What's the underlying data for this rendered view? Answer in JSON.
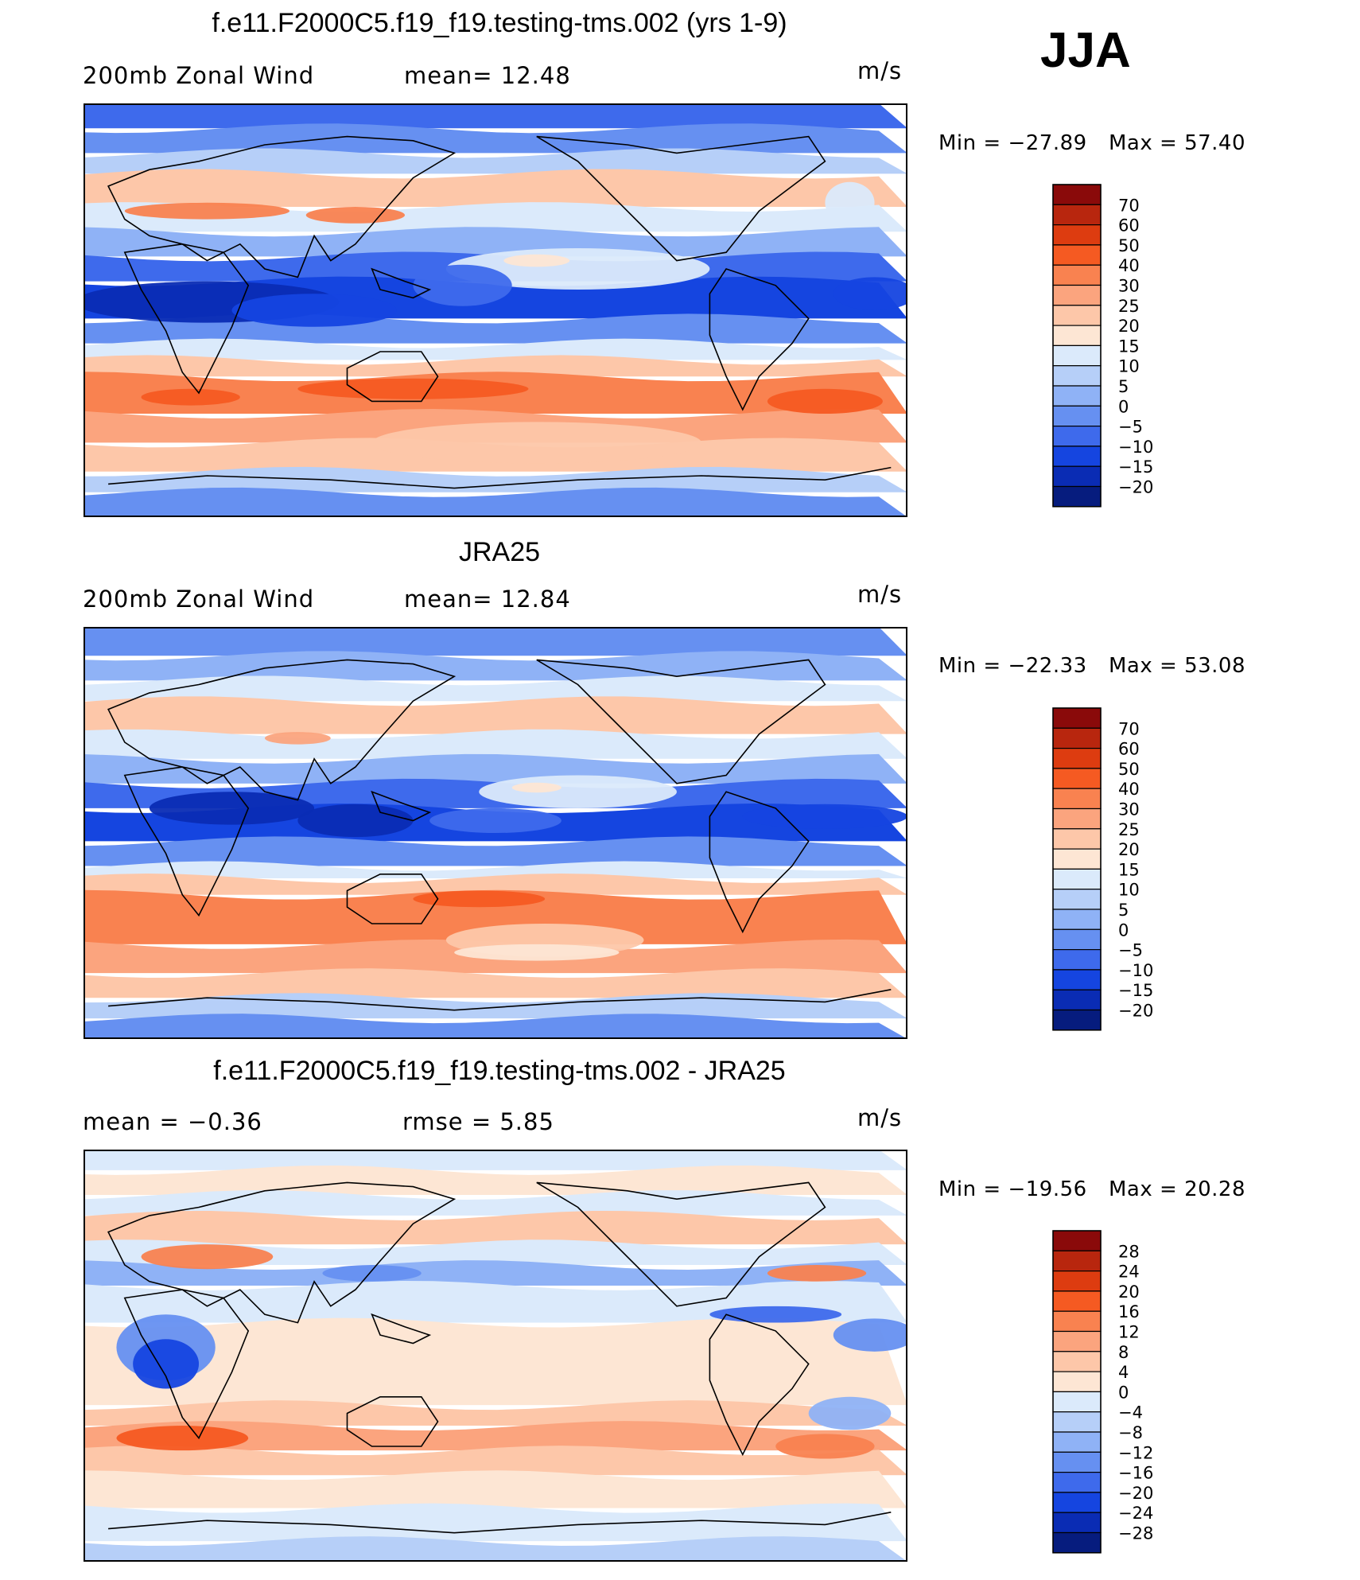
{
  "season": "JJA",
  "panels": [
    {
      "title": "f.e11.F2000C5.f19_f19.testing-tms.002 (yrs 1-9)",
      "left_label": "200mb  Zonal  Wind",
      "center_label": "mean=   12.48",
      "units": "m/s",
      "min_text": "Min  =  −27.89",
      "max_text": "Max  =    57.40"
    },
    {
      "title": "JRA25",
      "left_label": "200mb  Zonal  Wind",
      "center_label": "mean=   12.84",
      "units": "m/s",
      "min_text": "Min  =  −22.33",
      "max_text": "Max  =    53.08"
    },
    {
      "title": "f.e11.F2000C5.f19_f19.testing-tms.002 - JRA25",
      "left_label": "mean  =    −0.36",
      "center_label": "rmse  =     5.85",
      "units": "m/s",
      "min_text": "Min  =  −19.56",
      "max_text": "Max  =    20.28"
    }
  ],
  "chart_data": [
    {
      "type": "heatmap",
      "title": "f.e11.F2000C5.f19_f19.testing-tms.002 (yrs 1-9)",
      "variable": "200mb Zonal Wind",
      "units": "m/s",
      "mean": 12.48,
      "min": -27.89,
      "max": 57.4,
      "x_range": [
        30,
        390
      ],
      "y_range": [
        -90,
        90
      ],
      "colorbar_levels": [
        "70",
        "60",
        "50",
        "40",
        "30",
        "25",
        "20",
        "15",
        "10",
        "5",
        "0",
        "−5",
        "−10",
        "−15",
        "−20"
      ],
      "colors": [
        "#8a0a0a",
        "#b8260e",
        "#dd3c10",
        "#f55a22",
        "#f98250",
        "#fba47e",
        "#fdc7a9",
        "#fde6d4",
        "#dbeafb",
        "#b6cff8",
        "#8fb2f6",
        "#6690f1",
        "#3e6aec",
        "#1545e0",
        "#0a2cb4",
        "#061c7e"
      ]
    },
    {
      "type": "heatmap",
      "title": "JRA25",
      "variable": "200mb Zonal Wind",
      "units": "m/s",
      "mean": 12.84,
      "min": -22.33,
      "max": 53.08,
      "x_range": [
        30,
        390
      ],
      "y_range": [
        -90,
        90
      ],
      "colorbar_levels": [
        "70",
        "60",
        "50",
        "40",
        "30",
        "25",
        "20",
        "15",
        "10",
        "5",
        "0",
        "−5",
        "−10",
        "−15",
        "−20"
      ],
      "colors": [
        "#8a0a0a",
        "#b8260e",
        "#dd3c10",
        "#f55a22",
        "#f98250",
        "#fba47e",
        "#fdc7a9",
        "#fde6d4",
        "#dbeafb",
        "#b6cff8",
        "#8fb2f6",
        "#6690f1",
        "#3e6aec",
        "#1545e0",
        "#0a2cb4",
        "#061c7e"
      ]
    },
    {
      "type": "heatmap",
      "title": "f.e11.F2000C5.f19_f19.testing-tms.002 - JRA25",
      "units": "m/s",
      "mean": -0.36,
      "rmse": 5.85,
      "min": -19.56,
      "max": 20.28,
      "x_range": [
        30,
        390
      ],
      "y_range": [
        -90,
        90
      ],
      "colorbar_levels": [
        "28",
        "24",
        "20",
        "16",
        "12",
        "8",
        "4",
        "0",
        "−4",
        "−8",
        "−12",
        "−16",
        "−20",
        "−24",
        "−28"
      ],
      "colors": [
        "#8a0a0a",
        "#b8260e",
        "#dd3c10",
        "#f55a22",
        "#f98250",
        "#fba47e",
        "#fdc7a9",
        "#fde6d4",
        "#dbeafb",
        "#b6cff8",
        "#8fb2f6",
        "#6690f1",
        "#3e6aec",
        "#1545e0",
        "#0a2cb4",
        "#061c7e"
      ]
    }
  ]
}
